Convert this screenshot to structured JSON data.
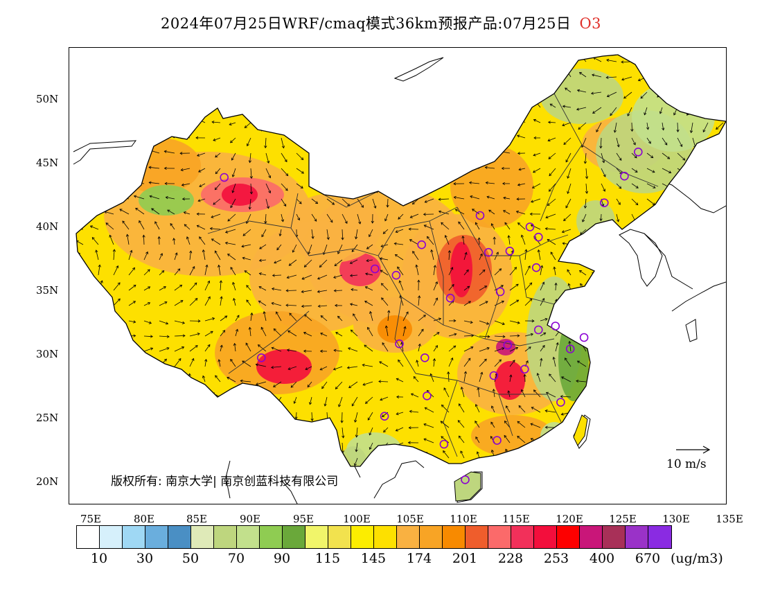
{
  "title": {
    "main": "2024年07月25日WRF/cmaq模式36km预报产品:07月25日",
    "species": "O3",
    "species_color": "#e0302a"
  },
  "axes": {
    "y_labels": [
      "50N",
      "45N",
      "40N",
      "35N",
      "30N",
      "25N",
      "20N"
    ],
    "x_labels": [
      "75E",
      "80E",
      "85E",
      "90E",
      "95E",
      "100E",
      "105E",
      "110E",
      "115E",
      "120E",
      "125E",
      "130E",
      "135E"
    ]
  },
  "wind_scale": {
    "label": "10 m/s"
  },
  "copyright": "版权所有: 南京大学| 南京创蓝科技有限公司",
  "legend": {
    "colors": [
      "#ffffff",
      "#d6f0fb",
      "#9fd8f4",
      "#6aaedd",
      "#4a8fc4",
      "#dfeab8",
      "#bed67e",
      "#c2e08c",
      "#8fcc52",
      "#6aa83a",
      "#f1f56a",
      "#f2e24e",
      "#fced00",
      "#fde000",
      "#f9b141",
      "#f8a425",
      "#f88a00",
      "#ef5d2c",
      "#fb6a6a",
      "#f2305a",
      "#f30e3c",
      "#fd0000",
      "#c91679",
      "#a83058",
      "#9a32c8",
      "#8a2be2"
    ],
    "tick_labels": [
      "10",
      "30",
      "50",
      "70",
      "90",
      "115",
      "145",
      "174",
      "201",
      "228",
      "253",
      "400",
      "670"
    ],
    "unit": "(ug/m3)"
  },
  "map_data": {
    "extent": {
      "lon": [
        73,
        135
      ],
      "lat": [
        18,
        54
      ]
    },
    "stations": [
      [
        87.6,
        43.8
      ],
      [
        91.1,
        29.6
      ],
      [
        101.8,
        36.6
      ],
      [
        103.8,
        36.1
      ],
      [
        106.2,
        38.5
      ],
      [
        104.1,
        30.7
      ],
      [
        106.5,
        29.6
      ],
      [
        106.7,
        26.6
      ],
      [
        102.7,
        25.0
      ],
      [
        108.3,
        22.8
      ],
      [
        110.3,
        20.0
      ],
      [
        113.3,
        23.1
      ],
      [
        113.0,
        28.2
      ],
      [
        114.3,
        30.6
      ],
      [
        115.9,
        28.7
      ],
      [
        119.3,
        26.1
      ],
      [
        120.2,
        30.3
      ],
      [
        121.5,
        31.2
      ],
      [
        118.8,
        32.1
      ],
      [
        117.2,
        31.8
      ],
      [
        113.6,
        34.8
      ],
      [
        112.5,
        37.9
      ],
      [
        111.7,
        40.8
      ],
      [
        114.5,
        38.0
      ],
      [
        117.0,
        36.7
      ],
      [
        116.4,
        39.9
      ],
      [
        117.2,
        39.1
      ],
      [
        108.9,
        34.3
      ],
      [
        123.4,
        41.8
      ],
      [
        125.3,
        43.9
      ],
      [
        126.6,
        45.8
      ]
    ]
  }
}
